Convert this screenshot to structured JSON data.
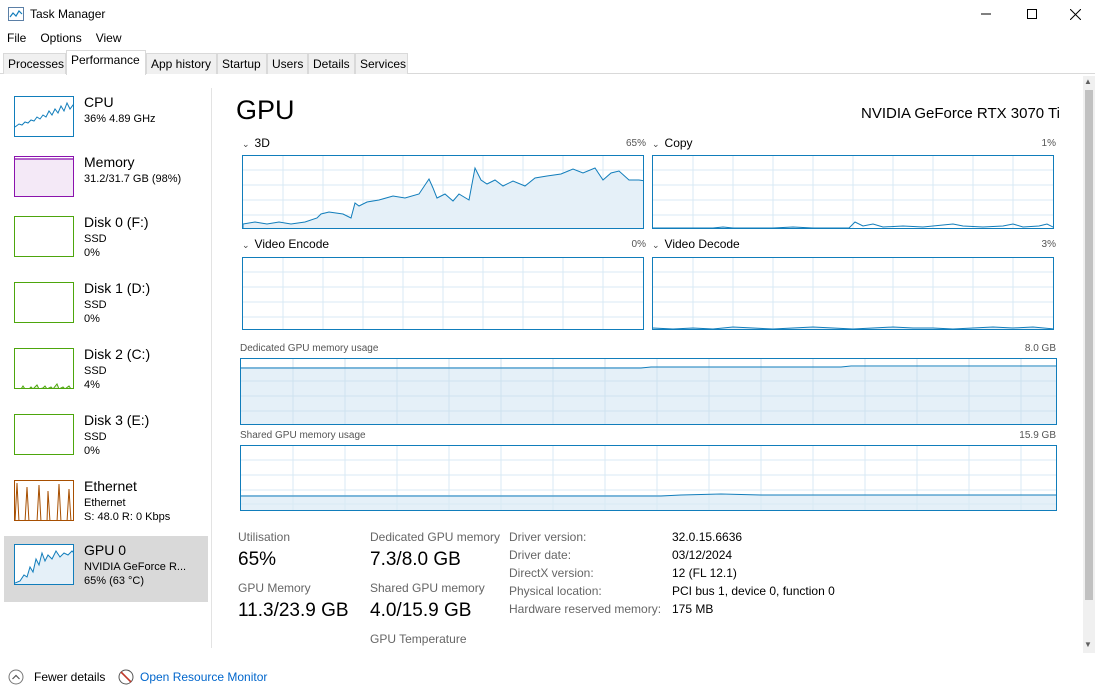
{
  "window": {
    "title": "Task Manager"
  },
  "menu": [
    "File",
    "Options",
    "View"
  ],
  "tabs": [
    "Processes",
    "Performance",
    "App history",
    "Startup",
    "Users",
    "Details",
    "Services"
  ],
  "sidebar": [
    {
      "name": "CPU",
      "line1": "36%  4.89 GHz",
      "line2": ""
    },
    {
      "name": "Memory",
      "line1": "31.2/31.7 GB (98%)",
      "line2": ""
    },
    {
      "name": "Disk 0 (F:)",
      "line1": "SSD",
      "line2": "0%"
    },
    {
      "name": "Disk 1 (D:)",
      "line1": "SSD",
      "line2": "0%"
    },
    {
      "name": "Disk 2 (C:)",
      "line1": "SSD",
      "line2": "4%"
    },
    {
      "name": "Disk 3 (E:)",
      "line1": "SSD",
      "line2": "0%"
    },
    {
      "name": "Ethernet",
      "line1": "Ethernet",
      "line2": "S: 48.0  R: 0 Kbps"
    },
    {
      "name": "GPU 0",
      "line1": "NVIDIA GeForce R...",
      "line2": "65% (63 °C)"
    }
  ],
  "gpu": {
    "title": "GPU",
    "model": "NVIDIA GeForce RTX 3070 Ti",
    "engines": [
      {
        "name": "3D",
        "pct": "65%"
      },
      {
        "name": "Copy",
        "pct": "1%"
      },
      {
        "name": "Video Encode",
        "pct": "0%"
      },
      {
        "name": "Video Decode",
        "pct": "3%"
      }
    ],
    "dedicated": {
      "label": "Dedicated GPU memory usage",
      "max": "8.0 GB"
    },
    "shared": {
      "label": "Shared GPU memory usage",
      "max": "15.9 GB"
    }
  },
  "stats": {
    "utilisation_label": "Utilisation",
    "utilisation": "65%",
    "gpu_memory_label": "GPU Memory",
    "gpu_memory": "11.3/23.9 GB",
    "dedicated_label": "Dedicated GPU memory",
    "dedicated": "7.3/8.0 GB",
    "shared_label": "Shared GPU memory",
    "shared": "4.0/15.9 GB",
    "temperature_label": "GPU Temperature"
  },
  "info": [
    {
      "key": "Driver version:",
      "value": "32.0.15.6636"
    },
    {
      "key": "Driver date:",
      "value": "03/12/2024"
    },
    {
      "key": "DirectX version:",
      "value": "12 (FL 12.1)"
    },
    {
      "key": "Physical location:",
      "value": "PCI bus 1, device 0, function 0"
    },
    {
      "key": "Hardware reserved memory:",
      "value": "175 MB"
    }
  ],
  "footer": {
    "fewer": "Fewer details",
    "monitor": "Open Resource Monitor"
  },
  "colors": {
    "gpu_line": "#117dbb",
    "memory": "#8b12ae",
    "disk": "#4da60c",
    "ethernet": "#a74f01"
  }
}
